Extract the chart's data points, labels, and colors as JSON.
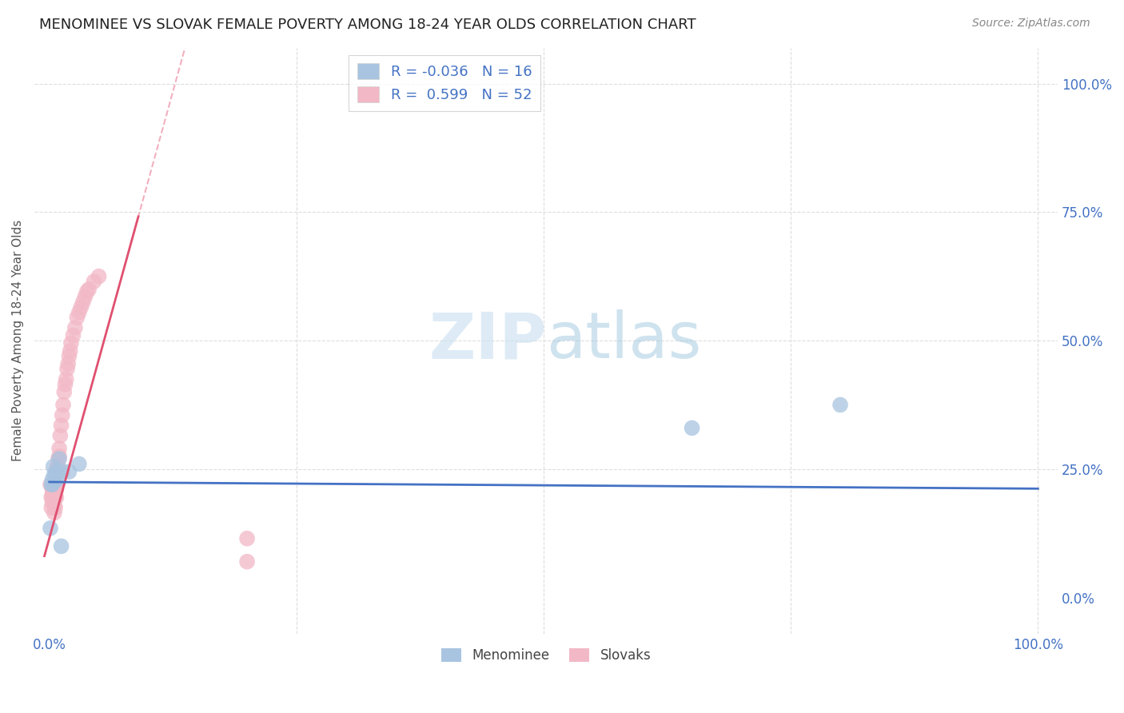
{
  "title": "MENOMINEE VS SLOVAK FEMALE POVERTY AMONG 18-24 YEAR OLDS CORRELATION CHART",
  "source": "Source: ZipAtlas.com",
  "ylabel": "Female Poverty Among 18-24 Year Olds",
  "background_color": "#ffffff",
  "menominee_color": "#a8c4e0",
  "slovak_color": "#f2b8c6",
  "grid_color": "#dddddd",
  "trend_blue_color": "#4472c4",
  "trend_pink_color": "#e05070",
  "menominee_R": -0.036,
  "menominee_N": 16,
  "slovak_R": 0.599,
  "slovak_N": 52,
  "xlim": [
    0.0,
    1.0
  ],
  "ylim": [
    0.0,
    1.0
  ],
  "menominee_x": [
    0.001,
    0.002,
    0.003,
    0.003,
    0.004,
    0.005,
    0.006,
    0.007,
    0.008,
    0.01,
    0.012,
    0.013,
    0.02,
    0.03,
    0.65,
    0.8
  ],
  "menominee_y": [
    0.135,
    0.22,
    0.22,
    0.23,
    0.255,
    0.24,
    0.235,
    0.245,
    0.23,
    0.27,
    0.1,
    0.245,
    0.245,
    0.26,
    0.33,
    0.375
  ],
  "slovak_x": [
    0.001,
    0.002,
    0.002,
    0.003,
    0.003,
    0.003,
    0.003,
    0.004,
    0.004,
    0.004,
    0.005,
    0.005,
    0.005,
    0.005,
    0.006,
    0.006,
    0.006,
    0.006,
    0.007,
    0.007,
    0.007,
    0.008,
    0.008,
    0.009,
    0.009,
    0.01,
    0.01,
    0.011,
    0.012,
    0.013,
    0.014,
    0.015,
    0.016,
    0.017,
    0.018,
    0.019,
    0.02,
    0.021,
    0.022,
    0.024,
    0.026,
    0.028,
    0.03,
    0.032,
    0.034,
    0.036,
    0.038,
    0.04,
    0.045,
    0.05,
    0.2,
    0.2
  ],
  "slovak_y": [
    0.22,
    0.195,
    0.175,
    0.21,
    0.2,
    0.195,
    0.185,
    0.22,
    0.205,
    0.19,
    0.21,
    0.195,
    0.18,
    0.165,
    0.22,
    0.21,
    0.195,
    0.175,
    0.22,
    0.21,
    0.195,
    0.24,
    0.255,
    0.27,
    0.255,
    0.29,
    0.275,
    0.315,
    0.335,
    0.355,
    0.375,
    0.4,
    0.415,
    0.425,
    0.445,
    0.455,
    0.47,
    0.48,
    0.495,
    0.51,
    0.525,
    0.545,
    0.555,
    0.565,
    0.575,
    0.585,
    0.595,
    0.6,
    0.615,
    0.625,
    0.07,
    0.115
  ],
  "watermark_text": "ZIPatlas",
  "watermark_color": "#c8dff0",
  "ytick_right_labels": [
    "0.0%",
    "25.0%",
    "50.0%",
    "75.0%",
    "100.0%"
  ],
  "xtick_labels": [
    "0.0%",
    "",
    "",
    "",
    "100.0%"
  ]
}
